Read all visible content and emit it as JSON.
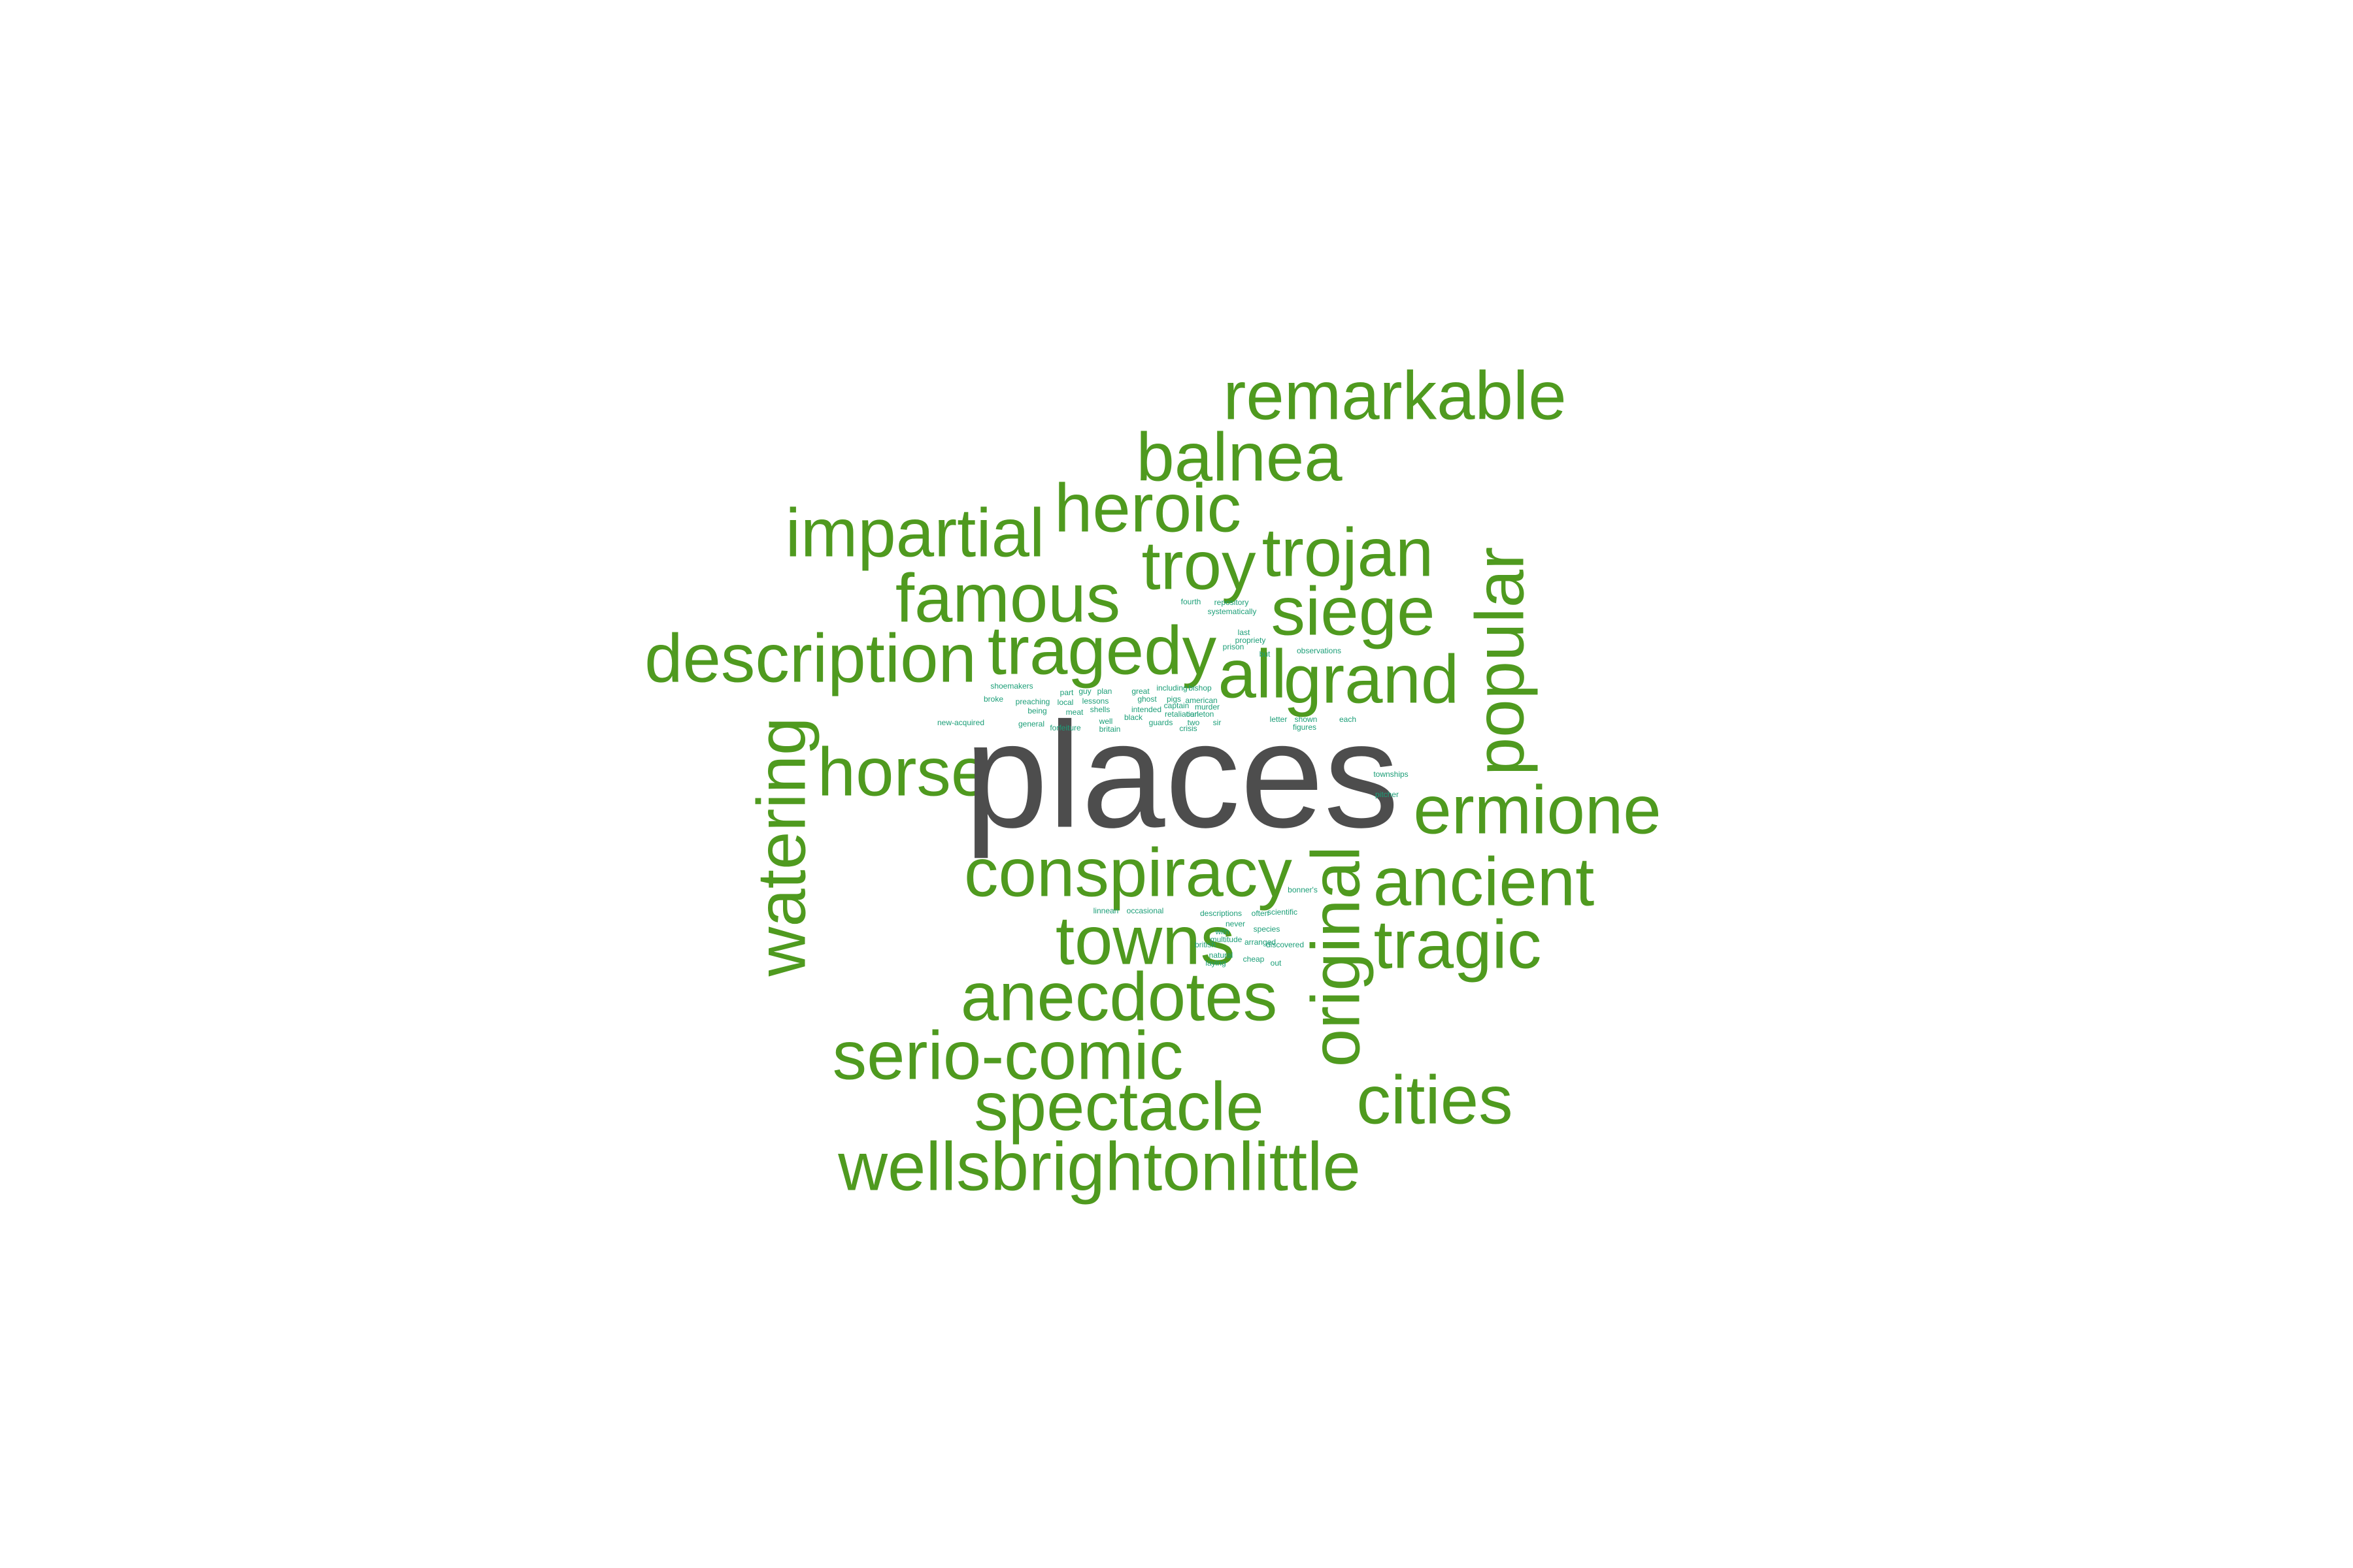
{
  "colors": {
    "background": "#ffffff",
    "dominant_word": "#4d4d4d",
    "large_words": "#4f9a1f",
    "small_words": "#1b9e77"
  },
  "word_cloud": {
    "dominant": "places",
    "large_words": [
      "remarkable",
      "balnea",
      "heroic",
      "impartial",
      "troy",
      "trojan",
      "famous",
      "siege",
      "popular",
      "description",
      "tragedy",
      "all",
      "grand",
      "horse",
      "watering",
      "ermione",
      "conspiracy",
      "ancient",
      "original",
      "towns",
      "tragic",
      "anecdotes",
      "serio-comic",
      "spectacle",
      "cities",
      "wellsbrightonlittle"
    ],
    "small_words_upper": [
      "fourth",
      "repository",
      "systematically",
      "last",
      "propriety",
      "prison",
      "observations",
      "but",
      "shoemakers",
      "broke",
      "preaching",
      "being",
      "part",
      "guy",
      "plan",
      "local",
      "lessons",
      "shells",
      "meat",
      "great",
      "ghost",
      "pigs",
      "american",
      "including",
      "bishop",
      "captain",
      "murder",
      "retaliation",
      "carleton",
      "two",
      "crisis",
      "new-acquired",
      "general",
      "forfeiture",
      "well",
      "britain",
      "sir",
      "guards",
      "black",
      "intended",
      "letter",
      "shown",
      "figures",
      "each",
      "townships",
      "pitcher"
    ],
    "small_words_lower": [
      "linnean",
      "occasional",
      "descriptions",
      "often",
      "scientific",
      "never",
      "with",
      "species",
      "multitude",
      "arranged",
      "british",
      "natural",
      "cheap",
      "laying",
      "out",
      "bonner's",
      "discovered"
    ]
  }
}
